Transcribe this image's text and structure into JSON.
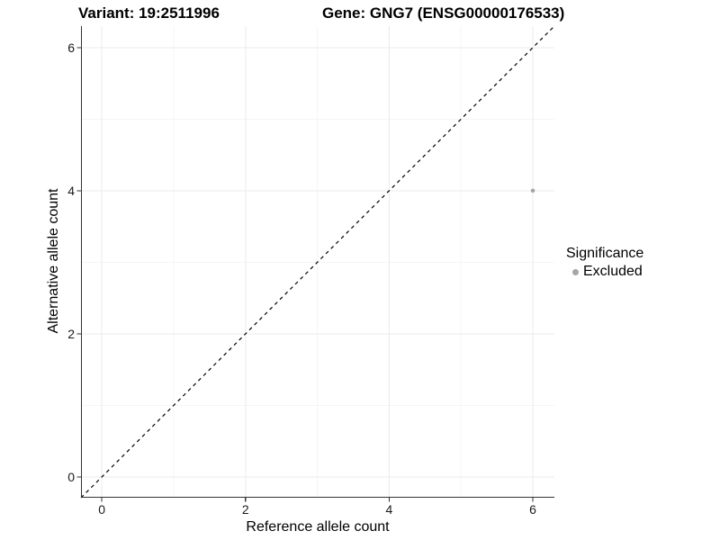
{
  "titles": {
    "variant": "Variant: 19:2511996",
    "gene": "Gene: GNG7 (ENSG00000176533)"
  },
  "axes": {
    "x": {
      "label": "Reference allele count",
      "tick_labels": [
        "0",
        "2",
        "4",
        "6"
      ]
    },
    "y": {
      "label": "Alternative allele count",
      "tick_labels": [
        "0",
        "2",
        "4",
        "6"
      ]
    }
  },
  "legend": {
    "title": "Significance",
    "items": [
      {
        "label": "Excluded",
        "color": "#a6a6a6"
      }
    ]
  },
  "colors": {
    "background": "#ffffff",
    "grid_major": "#ebebeb",
    "grid_minor": "#f5f5f5",
    "axis_line": "#333333",
    "reference_line": "#000000",
    "point": "#a6a6a6"
  },
  "chart_data": {
    "type": "scatter",
    "title": "Variant: 19:2511996 | Gene: GNG7 (ENSG00000176533)",
    "xlabel": "Reference allele count",
    "ylabel": "Alternative allele count",
    "xlim": [
      -0.29,
      6.3
    ],
    "ylim": [
      -0.29,
      6.3
    ],
    "x_ticks": [
      0,
      2,
      4,
      6
    ],
    "y_ticks": [
      0,
      2,
      4,
      6
    ],
    "x_minor_gridlines": [
      1,
      3,
      5
    ],
    "y_minor_gridlines": [
      1,
      3,
      5
    ],
    "grid": true,
    "legend_position": "right",
    "series": [
      {
        "name": "Excluded",
        "color": "#a6a6a6",
        "points": [
          [
            6,
            4
          ]
        ]
      }
    ],
    "reference_line": {
      "style": "dashed",
      "from": [
        -0.29,
        -0.29
      ],
      "to": [
        6.3,
        6.3
      ],
      "meaning": "identity line y = x"
    }
  }
}
